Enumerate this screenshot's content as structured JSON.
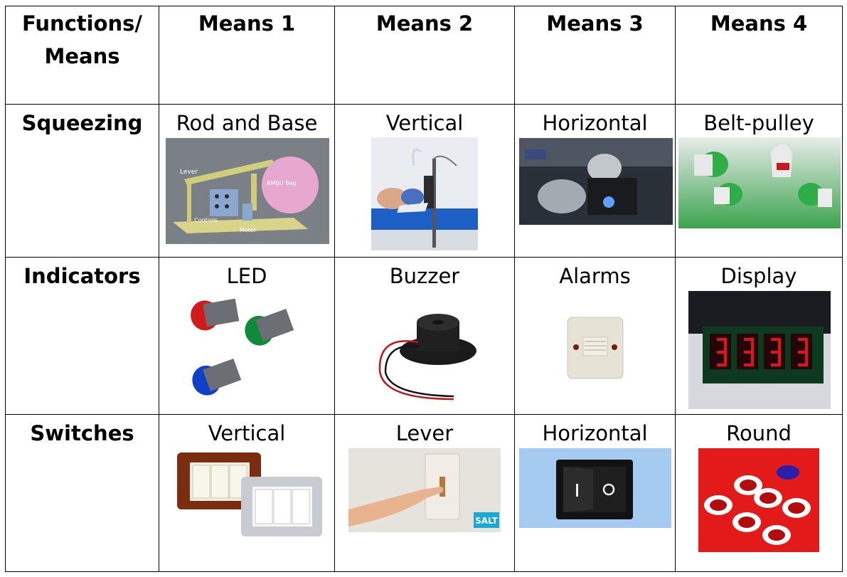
{
  "header": {
    "functions_means": "Functions/\nMeans",
    "means": [
      "Means 1",
      "Means 2",
      "Means 3",
      "Means 4"
    ]
  },
  "rows": [
    {
      "function": "Squeezing",
      "options": [
        "Rod and Base",
        "Vertical",
        "Horizontal",
        "Belt-pulley"
      ]
    },
    {
      "function": "Indicators",
      "options": [
        "LED",
        "Buzzer",
        "Alarms",
        "Display"
      ]
    },
    {
      "function": "Switches",
      "options": [
        "Vertical",
        "Lever",
        "Horizontal",
        "Round"
      ]
    }
  ],
  "image_text": {
    "rod_base_lever": "Lever",
    "rod_base_bag": "AMBU Bag",
    "rod_base_controls": "Controls",
    "rod_base_motor": "Motor",
    "lever_switch_brand": "SALT"
  },
  "colors": {
    "grid": "#000000",
    "led_red": "#d11a1a",
    "led_green": "#0f8a3a",
    "led_blue": "#1140c8",
    "display_digits": "#e0141a",
    "round_switch_bg": "#e21a1a"
  }
}
